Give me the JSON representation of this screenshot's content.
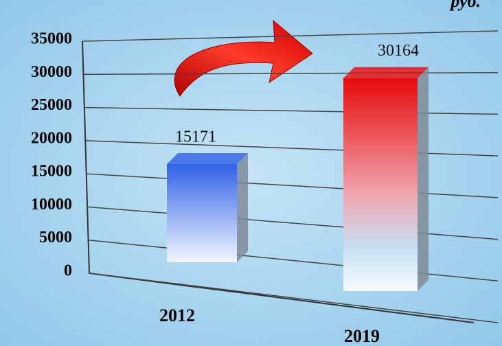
{
  "chart_data": {
    "type": "bar3d",
    "unit_label": "руб.",
    "categories": [
      "2012",
      "2019"
    ],
    "values": [
      15171,
      30164
    ],
    "colors": [
      "#2f62e6",
      "#e80a0a"
    ],
    "ylim": [
      0,
      35000
    ],
    "yticks": [
      0,
      5000,
      10000,
      15000,
      20000,
      25000,
      30000,
      35000
    ],
    "grid": true
  }
}
